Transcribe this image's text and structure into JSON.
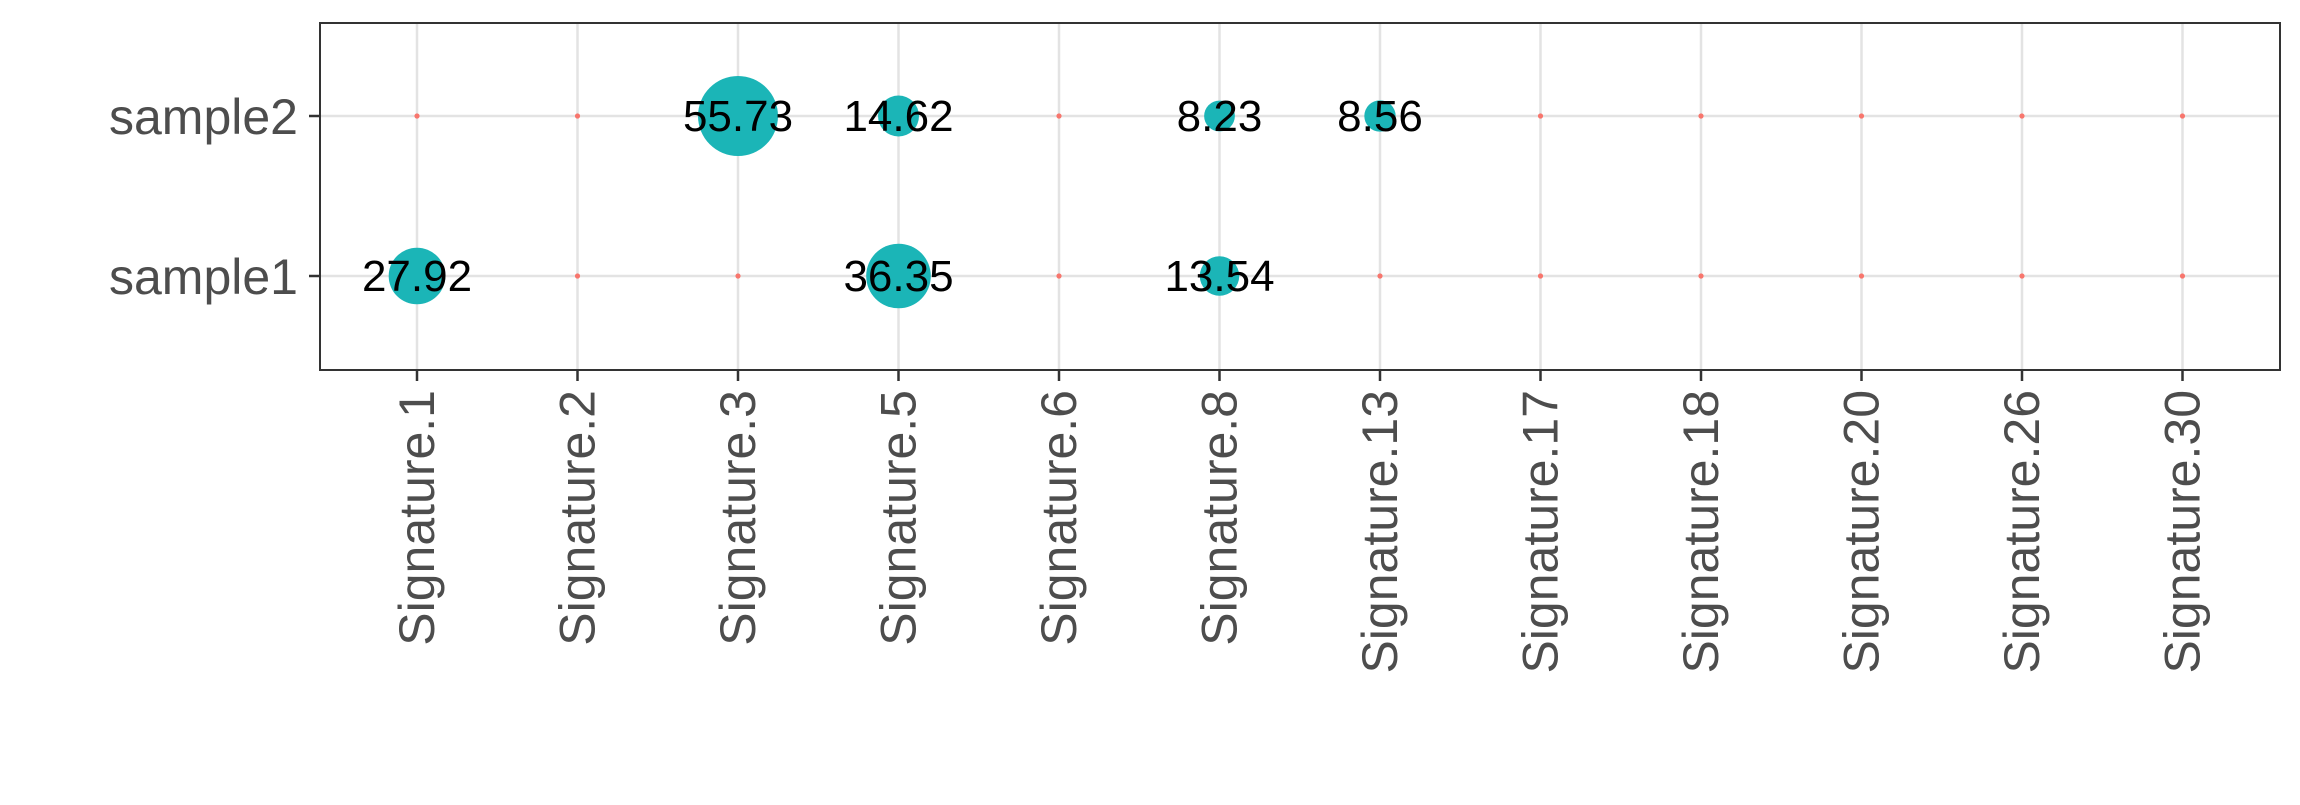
{
  "chart_data": {
    "type": "scatter",
    "subtype": "bubble",
    "title": "",
    "xlabel": "",
    "ylabel": "",
    "categories": [
      "Signature.1",
      "Signature.2",
      "Signature.3",
      "Signature.5",
      "Signature.6",
      "Signature.8",
      "Signature.13",
      "Signature.17",
      "Signature.18",
      "Signature.20",
      "Signature.26",
      "Signature.30"
    ],
    "rows": [
      "sample1",
      "sample2"
    ],
    "series": [
      {
        "row": "sample1",
        "values": [
          27.92,
          0,
          0,
          36.35,
          0,
          13.54,
          0,
          0,
          0,
          0,
          0,
          0
        ],
        "labels": [
          "27.92",
          "",
          "",
          "36.35",
          "",
          "13.54",
          "",
          "",
          "",
          "",
          "",
          ""
        ]
      },
      {
        "row": "sample2",
        "values": [
          0,
          0,
          55.73,
          14.62,
          0,
          8.23,
          8.56,
          0,
          0,
          0,
          0,
          0
        ],
        "labels": [
          "",
          "",
          "55.73",
          "14.62",
          "",
          "8.23",
          "8.56",
          "",
          "",
          "",
          "",
          ""
        ]
      }
    ],
    "grid": true,
    "legend": "none",
    "colors": {
      "bubble": "#1bb5b7",
      "zero_point": "#f8766d",
      "grid": "#e3e3e3",
      "panel_border": "#333333",
      "tick_text": "#4d4d4d",
      "label_text": "#000000"
    }
  }
}
